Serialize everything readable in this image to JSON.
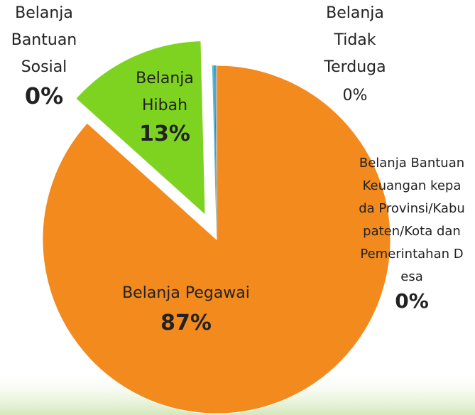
{
  "chart_data": {
    "type": "pie",
    "categories": [
      "Belanja Pegawai",
      "Belanja Hibah",
      "Belanja Bantuan Sosial",
      "Belanja Tidak Terduga",
      "Belanja Bantuan Keuangan kepada Provinsi/Kabupaten/Kota dan Pemerintahan Desa"
    ],
    "values": [
      87,
      13,
      0.2,
      0.1,
      0.1
    ],
    "value_labels": [
      "87%",
      "13%",
      "0%",
      "0%",
      "0%"
    ],
    "colors": [
      "#f28a1e",
      "#7ed321",
      "#4fb8e0",
      "#2a8fa8",
      "#9aa5ad"
    ]
  }
}
